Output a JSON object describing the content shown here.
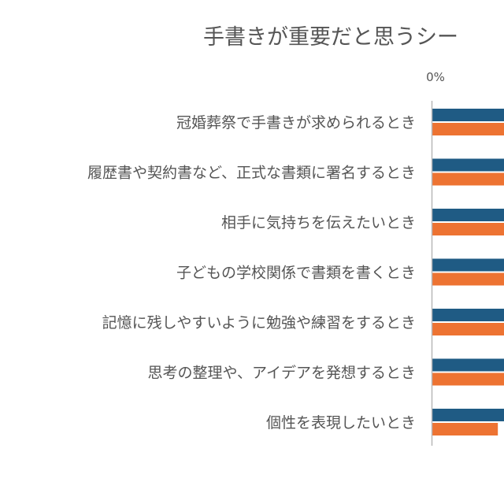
{
  "chart_data": {
    "type": "bar",
    "orientation": "horizontal",
    "title": "手書きが重要だと思うシー",
    "x_ticks": [
      "0%"
    ],
    "categories": [
      "冠婚葬祭で手書きが求められるとき",
      "履歴書や契約書など、正式な書類に署名するとき",
      "相手に気持ちを伝えたいとき",
      "子どもの学校関係で書類を書くとき",
      "記憶に残しやすいように勉強や練習をするとき",
      "思考の整理や、アイデアを発想するとき",
      "個性を表現したいとき"
    ],
    "series": [
      {
        "color": "#1f5b84",
        "values": [
          null,
          null,
          null,
          null,
          null,
          null,
          null
        ]
      },
      {
        "color": "#ed7332",
        "values": [
          null,
          null,
          null,
          null,
          null,
          null,
          16
        ]
      }
    ],
    "xlim": [
      0,
      null
    ],
    "grid": false,
    "legend": "none"
  }
}
